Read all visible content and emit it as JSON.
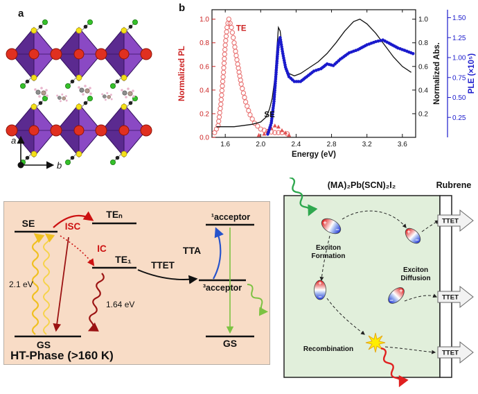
{
  "colors": {
    "purple_dark": "#5b2a90",
    "purple_light": "#8a49c4",
    "red_atom": "#e03020",
    "yellow_atom": "#f5e018",
    "green_atom": "#35c02a",
    "pl_red": "#cc2222",
    "abs_black": "#111111",
    "ple_blue": "#1a1acc",
    "energy_bg": "#f8dcc6",
    "scheme_green": "#e1efdb"
  },
  "panel_a": {
    "label": "a",
    "axis_a_label": "a",
    "axis_b_label": "b"
  },
  "panel_b": {
    "label": "b"
  },
  "chart_data": {
    "type": "line",
    "xlabel": "Energy (eV)",
    "axes": {
      "x": {
        "lim": [
          1.45,
          3.75
        ],
        "ticks": [
          1.6,
          2.0,
          2.4,
          2.8,
          3.2,
          3.6
        ],
        "fmt": 1
      },
      "pl": {
        "label": "Normalized PL",
        "color": "#cc2222",
        "lim": [
          0,
          1.08
        ],
        "ticks": [
          0.0,
          0.2,
          0.4,
          0.6,
          0.8,
          1.0
        ],
        "fmt": 1
      },
      "abs": {
        "label": "Normalized Abs.",
        "color": "#111111",
        "lim": [
          0,
          1.08
        ],
        "ticks": [
          0.2,
          0.4,
          0.6,
          0.8,
          1.0
        ],
        "fmt": 1
      },
      "ple": {
        "label": "PLE (×10⁵)",
        "color": "#1a1acc",
        "lim": [
          0,
          1.6
        ],
        "ticks": [
          0.25,
          0.5,
          0.75,
          1.0,
          1.25,
          1.5
        ],
        "fmt": 2
      }
    },
    "annotations": [
      {
        "text": "TE",
        "x": 1.78,
        "y": 0.9,
        "axis": "pl",
        "color": "#cc2222"
      },
      {
        "text": "SE",
        "x": 2.1,
        "y": 0.17,
        "axis": "pl",
        "color": "#111111"
      }
    ],
    "series": [
      {
        "name": "TE emission (PL)",
        "axis": "pl",
        "style": "open-circles",
        "color": "#e87070",
        "points": [
          [
            1.48,
            0.04
          ],
          [
            1.52,
            0.1
          ],
          [
            1.55,
            0.28
          ],
          [
            1.58,
            0.55
          ],
          [
            1.6,
            0.78
          ],
          [
            1.62,
            0.93
          ],
          [
            1.64,
            1.0
          ],
          [
            1.67,
            0.93
          ],
          [
            1.7,
            0.8
          ],
          [
            1.74,
            0.62
          ],
          [
            1.78,
            0.45
          ],
          [
            1.83,
            0.3
          ],
          [
            1.88,
            0.19
          ],
          [
            1.93,
            0.12
          ],
          [
            2.0,
            0.07
          ],
          [
            2.08,
            0.05
          ],
          [
            2.16,
            0.04
          ],
          [
            2.24,
            0.04
          ],
          [
            2.3,
            0.03
          ]
        ]
      },
      {
        "name": "SE emission (PL)",
        "axis": "pl",
        "style": "triangles",
        "color": "#e05050",
        "points": [
          [
            1.98,
            0.02
          ],
          [
            2.04,
            0.03
          ],
          [
            2.08,
            0.05
          ],
          [
            2.12,
            0.08
          ],
          [
            2.16,
            0.1
          ],
          [
            2.2,
            0.09
          ],
          [
            2.24,
            0.06
          ],
          [
            2.28,
            0.04
          ],
          [
            2.32,
            0.02
          ]
        ]
      },
      {
        "name": "Absorption",
        "axis": "abs",
        "style": "line",
        "color": "#111111",
        "points": [
          [
            1.5,
            0.09
          ],
          [
            1.7,
            0.09
          ],
          [
            1.9,
            0.11
          ],
          [
            2.0,
            0.13
          ],
          [
            2.06,
            0.17
          ],
          [
            2.1,
            0.24
          ],
          [
            2.13,
            0.33
          ],
          [
            2.16,
            0.5
          ],
          [
            2.18,
            0.72
          ],
          [
            2.2,
            0.93
          ],
          [
            2.22,
            0.9
          ],
          [
            2.25,
            0.72
          ],
          [
            2.28,
            0.6
          ],
          [
            2.32,
            0.54
          ],
          [
            2.38,
            0.52
          ],
          [
            2.45,
            0.54
          ],
          [
            2.55,
            0.59
          ],
          [
            2.65,
            0.64
          ],
          [
            2.75,
            0.71
          ],
          [
            2.85,
            0.8
          ],
          [
            2.95,
            0.9
          ],
          [
            3.05,
            0.98
          ],
          [
            3.12,
            1.0
          ],
          [
            3.2,
            0.96
          ],
          [
            3.3,
            0.88
          ],
          [
            3.4,
            0.78
          ],
          [
            3.5,
            0.68
          ],
          [
            3.6,
            0.6
          ],
          [
            3.7,
            0.55
          ]
        ]
      },
      {
        "name": "PLE",
        "axis": "ple",
        "style": "filled-circles",
        "color": "#1a1acc",
        "points": [
          [
            2.08,
            0.04
          ],
          [
            2.12,
            0.18
          ],
          [
            2.15,
            0.45
          ],
          [
            2.18,
            0.9
          ],
          [
            2.2,
            1.18
          ],
          [
            2.22,
            1.25
          ],
          [
            2.25,
            1.05
          ],
          [
            2.28,
            0.88
          ],
          [
            2.32,
            0.76
          ],
          [
            2.38,
            0.7
          ],
          [
            2.45,
            0.7
          ],
          [
            2.52,
            0.76
          ],
          [
            2.6,
            0.83
          ],
          [
            2.68,
            0.86
          ],
          [
            2.75,
            0.92
          ],
          [
            2.82,
            0.9
          ],
          [
            2.9,
            0.98
          ],
          [
            3.0,
            1.06
          ],
          [
            3.1,
            1.1
          ],
          [
            3.2,
            1.16
          ],
          [
            3.3,
            1.2
          ],
          [
            3.38,
            1.22
          ],
          [
            3.45,
            1.18
          ],
          [
            3.55,
            1.12
          ],
          [
            3.65,
            1.08
          ],
          [
            3.72,
            1.05
          ]
        ]
      }
    ]
  },
  "energy_diagram": {
    "se": "SE",
    "isc": "ISC",
    "te_n": "TEₙ",
    "ic": "IC",
    "te_1": "TE₁",
    "ttet": "TTET",
    "tta": "TTA",
    "acceptor_singlet": "¹acceptor",
    "acceptor_triplet": "³acceptor",
    "gs_left": "GS",
    "gs_right": "GS",
    "pump": "2.1 eV",
    "emission": "1.64 eV",
    "phase": "HT-Phase (>160 K)"
  },
  "schematic": {
    "material": "(MA)₂Pb(SCN)₂I₂",
    "acceptor": "Rubrene",
    "ttet": "TTET",
    "formation_l1": "Exciton",
    "formation_l2": "Formation",
    "diffusion_l1": "Exciton",
    "diffusion_l2": "Diffusion",
    "recombination": "Recombination",
    "plus": "+",
    "minus": "−"
  }
}
